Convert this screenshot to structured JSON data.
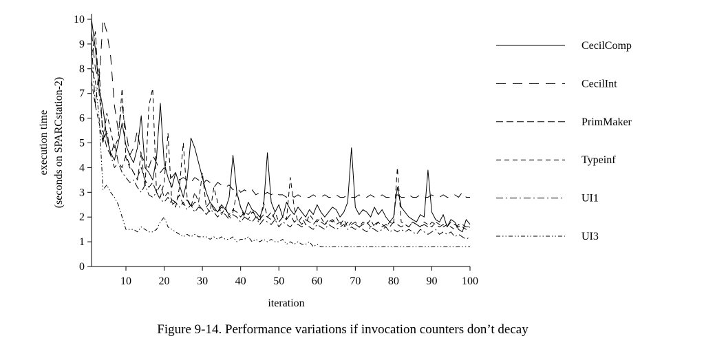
{
  "caption": "Figure 9-14.  Performance variations if invocation counters don’t decay",
  "chart_data": {
    "type": "line",
    "title": "",
    "xlabel": "iteration",
    "ylabel": [
      "execution time",
      "(seconds on SPARCstation-2)"
    ],
    "xlim": [
      1,
      100
    ],
    "ylim": [
      0,
      10
    ],
    "xticks": [
      10,
      20,
      30,
      40,
      50,
      60,
      70,
      80,
      90,
      100
    ],
    "yticks": [
      0,
      1,
      2,
      3,
      4,
      5,
      6,
      7,
      8,
      9,
      10
    ],
    "grid": false,
    "legend_position": "right",
    "x_start": 1,
    "series": [
      {
        "name": "CecilComp",
        "dash": "solid",
        "values": [
          10.0,
          8.8,
          7.2,
          6.4,
          5.2,
          4.6,
          4.3,
          5.0,
          5.8,
          4.9,
          4.5,
          4.2,
          4.8,
          6.1,
          4.0,
          3.8,
          3.5,
          4.4,
          6.6,
          4.2,
          3.6,
          3.2,
          3.8,
          3.3,
          2.8,
          3.5,
          5.2,
          4.8,
          4.2,
          3.6,
          3.0,
          2.6,
          2.4,
          2.2,
          2.5,
          2.3,
          2.8,
          4.5,
          3.0,
          2.4,
          2.1,
          2.6,
          2.3,
          2.2,
          2.0,
          2.4,
          4.6,
          2.6,
          2.2,
          2.5,
          2.0,
          2.6,
          2.3,
          2.1,
          2.4,
          2.2,
          2.0,
          2.3,
          2.1,
          2.5,
          2.2,
          2.0,
          2.2,
          2.4,
          2.3,
          2.0,
          2.2,
          2.6,
          4.8,
          2.4,
          2.1,
          2.3,
          2.2,
          2.0,
          2.4,
          2.1,
          2.3,
          2.0,
          1.8,
          2.0,
          3.2,
          2.4,
          2.2,
          2.0,
          1.9,
          1.8,
          2.1,
          2.0,
          3.9,
          2.2,
          1.9,
          1.8,
          2.1,
          1.6,
          1.9,
          1.8,
          1.5,
          1.4,
          1.9,
          1.7
        ]
      },
      {
        "name": "CecilInt",
        "dash": "long",
        "values": [
          9.5,
          8.0,
          7.5,
          10.0,
          9.5,
          8.5,
          6.5,
          5.5,
          6.5,
          5.5,
          4.5,
          4.8,
          5.5,
          4.5,
          4.2,
          4.0,
          4.5,
          4.2,
          3.8,
          4.0,
          3.8,
          3.6,
          3.8,
          3.5,
          3.6,
          3.5,
          3.4,
          3.6,
          3.5,
          3.3,
          3.5,
          3.4,
          3.2,
          3.4,
          3.3,
          3.2,
          3.3,
          3.1,
          3.2,
          3.0,
          3.1,
          3.0,
          3.1,
          2.9,
          3.0,
          2.9,
          3.0,
          2.9,
          3.0,
          2.9,
          2.9,
          2.8,
          2.9,
          2.8,
          2.9,
          2.8,
          2.8,
          2.8,
          2.9,
          2.8,
          2.8,
          2.9,
          2.8,
          2.8,
          2.9,
          2.8,
          2.8,
          2.9,
          2.8,
          2.8,
          2.9,
          2.8,
          2.8,
          2.9,
          2.8,
          2.8,
          2.9,
          2.8,
          2.8,
          2.8,
          2.9,
          2.8,
          2.8,
          2.9,
          2.8,
          2.8,
          2.9,
          2.8,
          2.8,
          2.9,
          2.8,
          2.8,
          2.9,
          2.8,
          2.8,
          2.9,
          2.8,
          3.0,
          2.8,
          2.8
        ]
      },
      {
        "name": "PrimMaker",
        "dash": "medium",
        "values": [
          8.5,
          9.5,
          7.0,
          5.5,
          4.8,
          4.5,
          5.0,
          4.2,
          4.0,
          4.5,
          4.1,
          3.8,
          3.6,
          4.0,
          3.5,
          3.2,
          3.4,
          3.0,
          3.3,
          2.8,
          3.0,
          2.7,
          2.6,
          2.9,
          2.5,
          2.7,
          2.4,
          2.6,
          2.5,
          2.3,
          2.4,
          2.6,
          2.3,
          2.2,
          2.4,
          2.3,
          2.1,
          2.3,
          2.2,
          2.0,
          2.2,
          2.1,
          2.3,
          2.0,
          1.9,
          2.1,
          2.0,
          2.2,
          1.9,
          1.8,
          2.0,
          1.9,
          2.1,
          1.8,
          1.9,
          1.7,
          1.9,
          1.8,
          1.7,
          1.9,
          1.8,
          1.7,
          1.8,
          1.9,
          1.7,
          1.8,
          1.6,
          1.8,
          1.7,
          1.8,
          1.6,
          1.7,
          1.8,
          1.6,
          1.7,
          1.8,
          1.6,
          1.7,
          1.6,
          1.8,
          1.7,
          1.6,
          1.7,
          1.6,
          1.8,
          1.7,
          1.6,
          1.7,
          1.6,
          1.8,
          1.7,
          1.6,
          1.7,
          1.6,
          1.8,
          1.7,
          1.6,
          1.7,
          1.6,
          1.6
        ]
      },
      {
        "name": "Typeinf",
        "dash": "short",
        "values": [
          7.5,
          6.5,
          5.8,
          5.0,
          6.2,
          5.5,
          4.8,
          5.2,
          7.2,
          4.4,
          4.0,
          3.8,
          3.5,
          4.6,
          3.2,
          6.5,
          7.2,
          3.0,
          2.8,
          3.4,
          5.4,
          2.6,
          2.4,
          3.2,
          5.0,
          2.8,
          2.4,
          3.0,
          2.6,
          3.8,
          2.4,
          2.2,
          3.2,
          2.6,
          2.1,
          2.4,
          2.0,
          2.2,
          3.0,
          2.4,
          2.0,
          1.9,
          2.2,
          2.1,
          1.8,
          2.6,
          2.0,
          1.9,
          2.2,
          1.8,
          2.0,
          1.9,
          3.6,
          2.4,
          1.8,
          2.0,
          1.7,
          2.1,
          1.9,
          1.8,
          2.0,
          1.7,
          1.9,
          1.8,
          2.0,
          1.7,
          1.9,
          1.6,
          1.8,
          1.7,
          1.6,
          1.8,
          1.7,
          1.9,
          1.6,
          1.8,
          1.7,
          1.6,
          1.8,
          1.7,
          4.0,
          1.8,
          1.7,
          1.6,
          1.8,
          1.7,
          1.6,
          1.8,
          1.7,
          1.6,
          1.8,
          1.7,
          1.6,
          1.7,
          1.6,
          1.5,
          1.7,
          1.6,
          1.5,
          1.6
        ]
      },
      {
        "name": "UI1",
        "dash": "dashdot",
        "values": [
          9.0,
          6.5,
          8.0,
          5.0,
          5.5,
          4.5,
          4.0,
          4.2,
          3.8,
          3.6,
          3.4,
          3.5,
          3.2,
          3.0,
          3.3,
          2.9,
          2.8,
          3.0,
          2.7,
          2.6,
          2.8,
          2.5,
          2.6,
          2.4,
          2.6,
          2.3,
          2.5,
          2.2,
          2.4,
          2.3,
          2.1,
          2.3,
          2.2,
          2.0,
          2.2,
          2.1,
          1.9,
          2.1,
          2.0,
          1.8,
          2.0,
          1.9,
          1.8,
          2.0,
          1.7,
          1.9,
          1.8,
          1.7,
          1.9,
          1.6,
          1.8,
          1.7,
          1.6,
          1.8,
          1.7,
          1.6,
          1.7,
          1.6,
          1.5,
          1.7,
          1.6,
          1.5,
          1.7,
          1.6,
          1.5,
          1.6,
          1.7,
          1.5,
          1.6,
          1.5,
          1.6,
          1.5,
          1.4,
          1.6,
          1.5,
          1.4,
          1.5,
          1.6,
          1.4,
          1.5,
          1.4,
          1.5,
          1.4,
          1.5,
          1.4,
          1.3,
          1.5,
          1.4,
          1.3,
          1.4,
          1.5,
          1.3,
          1.4,
          1.3,
          1.4,
          1.2,
          1.3,
          1.2,
          1.1,
          1.2
        ]
      },
      {
        "name": "UI3",
        "dash": "dashdotdot",
        "values": [
          8.0,
          7.5,
          6.0,
          3.1,
          3.3,
          3.0,
          2.8,
          2.5,
          2.0,
          1.5,
          1.5,
          1.5,
          1.4,
          1.6,
          1.5,
          1.4,
          1.4,
          1.5,
          1.8,
          2.0,
          1.6,
          1.5,
          1.4,
          1.3,
          1.2,
          1.3,
          1.2,
          1.3,
          1.2,
          1.2,
          1.2,
          1.1,
          1.2,
          1.1,
          1.2,
          1.1,
          1.1,
          1.2,
          1.0,
          1.1,
          1.1,
          1.2,
          1.0,
          1.1,
          1.0,
          1.1,
          1.0,
          1.1,
          1.0,
          1.0,
          1.1,
          0.9,
          1.0,
          0.9,
          1.0,
          0.9,
          0.9,
          1.0,
          0.8,
          0.9,
          0.8,
          0.8,
          0.8,
          0.8,
          0.8,
          0.8,
          0.8,
          0.8,
          0.8,
          0.8,
          0.8,
          0.8,
          0.8,
          0.8,
          0.8,
          0.8,
          0.8,
          0.8,
          0.8,
          0.8,
          0.8,
          0.8,
          0.8,
          0.8,
          0.8,
          0.8,
          0.8,
          0.8,
          0.8,
          0.8,
          0.8,
          0.8,
          0.8,
          0.8,
          0.8,
          0.8,
          0.8,
          0.8,
          0.8,
          0.8
        ]
      }
    ]
  }
}
